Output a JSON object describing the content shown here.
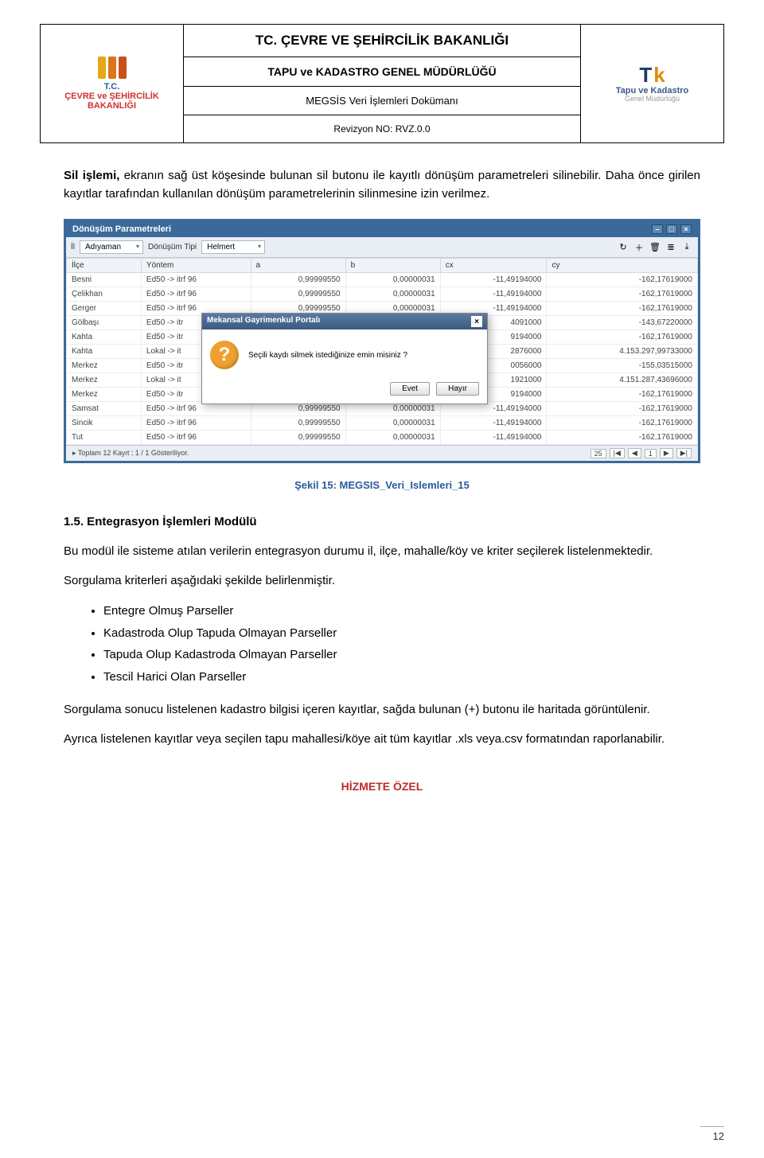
{
  "header": {
    "ministry": "TC. ÇEVRE VE ŞEHİRCİLİK BAKANLIĞI",
    "directorate": "TAPU ve KADASTRO GENEL MÜDÜRLÜĞÜ",
    "doc_name": "MEGSİS Veri İşlemleri Dokümanı",
    "revision": "Revizyon NO: RVZ.0.0",
    "logo_left_line1": "T.C.",
    "logo_left_line2": "ÇEVRE ve ŞEHİRCİLİK",
    "logo_left_line3": "BAKANLIĞI",
    "logo_right_line1": "Tapu ve Kadastro",
    "logo_right_line2": "Genel Müdürlüğü",
    "logo_bar_colors": [
      "#e6a817",
      "#d9771a",
      "#c9501a"
    ]
  },
  "body": {
    "p1_strong": "Sil işlemi,",
    "p1_rest": " ekranın sağ üst köşesinde bulunan sil butonu ile kayıtlı dönüşüm parametreleri silinebilir. Daha önce girilen kayıtlar tarafından kullanılan dönüşüm parametrelerinin silinmesine izin verilmez."
  },
  "screenshot": {
    "window_title": "Dönüşüm Parametreleri",
    "filter": {
      "il_label": "İl",
      "il_value": "Adıyaman",
      "tipi_label": "Dönüşüm Tipi",
      "tipi_value": "Helmert"
    },
    "toolbar_icons": [
      "↻",
      "＋",
      "🗑",
      "≣",
      "⤓"
    ],
    "columns": [
      "İlçe",
      "Yöntem",
      "a",
      "b",
      "cx",
      "cy"
    ],
    "rows": [
      [
        "Besni",
        "Ed50 -> itrf 96",
        "0,99999550",
        "0,00000031",
        "-11,49194000",
        "-162,17619000"
      ],
      [
        "Çelikhan",
        "Ed50 -> itrf 96",
        "0,99999550",
        "0,00000031",
        "-11,49194000",
        "-162,17619000"
      ],
      [
        "Gerger",
        "Ed50 -> itrf 96",
        "0,99999550",
        "0,00000031",
        "-11,49194000",
        "-162,17619000"
      ],
      [
        "Gölbaşı",
        "Ed50 -> itr",
        "",
        "",
        "4091000",
        "-143,67220000"
      ],
      [
        "Kahta",
        "Ed50 -> itr",
        "",
        "",
        "9194000",
        "-162,17619000"
      ],
      [
        "Kahta",
        "Lokal -> it",
        "",
        "",
        "2876000",
        "4.153.297,99733000"
      ],
      [
        "Merkez",
        "Ed50 -> itr",
        "",
        "",
        "0056000",
        "-155,03515000"
      ],
      [
        "Merkez",
        "Lokal -> it",
        "",
        "",
        "1921000",
        "4.151.287,43696000"
      ],
      [
        "Merkez",
        "Ed50 -> itr",
        "",
        "",
        "9194000",
        "-162,17619000"
      ],
      [
        "Samsat",
        "Ed50 -> itrf 96",
        "0,99999550",
        "0,00000031",
        "-11,49194000",
        "-162,17619000"
      ],
      [
        "Sincik",
        "Ed50 -> itrf 96",
        "0,99999550",
        "0,00000031",
        "-11,49194000",
        "-162,17619000"
      ],
      [
        "Tut",
        "Ed50 -> itrf 96",
        "0,99999550",
        "0,00000031",
        "-11,49194000",
        "-162,17619000"
      ]
    ],
    "status_text": "Toplam 12 Kayıt ; 1 / 1 Gösteriliyor.",
    "page_size": "25",
    "pager_buttons": [
      "|◀",
      "◀",
      "1",
      "▶",
      "▶|"
    ],
    "modal": {
      "title": "Mekansal Gayrimenkul Portalı",
      "message": "Seçili kaydı silmek istediğinize emin misiniz ?",
      "yes": "Evet",
      "no": "Hayır"
    }
  },
  "caption": "Şekil 15: MEGSIS_Veri_Islemleri_15",
  "section": {
    "heading": "1.5. Entegrasyon İşlemleri Modülü",
    "p1": "Bu modül ile sisteme atılan verilerin entegrasyon durumu il, ilçe, mahalle/köy ve kriter seçilerek listelenmektedir.",
    "p2": "Sorgulama kriterleri aşağıdaki şekilde belirlenmiştir.",
    "bullets": [
      "Entegre Olmuş Parseller",
      "Kadastroda Olup Tapuda Olmayan Parseller",
      "Tapuda Olup Kadastroda Olmayan Parseller",
      "Tescil Harici Olan Parseller"
    ],
    "p3": "Sorgulama sonucu listelenen kadastro bilgisi içeren kayıtlar, sağda bulunan (+) butonu ile haritada görüntülenir.",
    "p4": "Ayrıca listelenen kayıtlar veya seçilen tapu mahallesi/köye ait tüm kayıtlar .xls veya.csv formatından raporlanabilir."
  },
  "footer": {
    "label": "HİZMETE ÖZEL",
    "page_no": "12"
  },
  "colors": {
    "header_border": "#000000",
    "panel_border": "#3b6a9a",
    "caption_color": "#2a5a9a",
    "footer_color": "#c02a2a"
  }
}
